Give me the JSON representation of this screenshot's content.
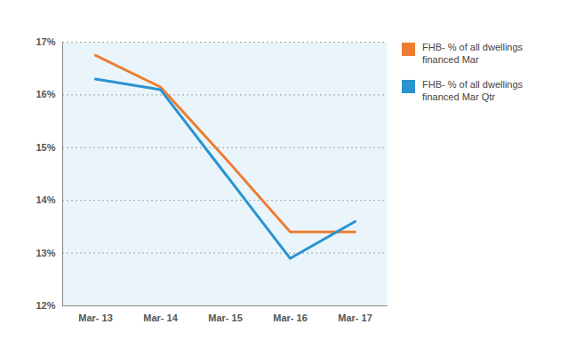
{
  "chart_data": {
    "type": "line",
    "categories": [
      "Mar- 13",
      "Mar- 14",
      "Mar- 15",
      "Mar- 16",
      "Mar- 17"
    ],
    "series": [
      {
        "name": "FHB- % of all dwellings financed Mar",
        "color": "#ed7d31",
        "values": [
          16.75,
          16.15,
          14.8,
          13.4,
          13.4
        ]
      },
      {
        "name": "FHB- % of all dwellings financed Mar Qtr",
        "color": "#2a93d0",
        "values": [
          16.3,
          16.1,
          14.5,
          12.9,
          13.6
        ]
      }
    ],
    "ylim": [
      12,
      17
    ],
    "yticks": [
      {
        "value": 12,
        "label": "12%"
      },
      {
        "value": 13,
        "label": "13%"
      },
      {
        "value": 14,
        "label": "14%"
      },
      {
        "value": 15,
        "label": "15%"
      },
      {
        "value": 16,
        "label": "16%"
      },
      {
        "value": 17,
        "label": "17%"
      }
    ],
    "grid": true,
    "legend": "right"
  }
}
